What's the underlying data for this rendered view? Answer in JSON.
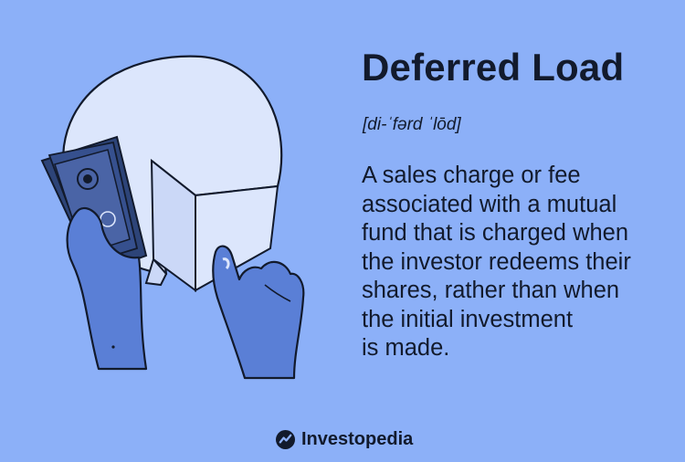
{
  "term": {
    "title": "Deferred Load",
    "pronunciation": "[di-ˈfərd ˈlōd]"
  },
  "definition_lines": [
    "A sales charge or fee",
    "associated with a mutual",
    "fund that is charged when",
    "the investor redeems their",
    "shares, rather than when",
    "the initial investment",
    "is made."
  ],
  "brand": {
    "name": "Investopedia",
    "logo_icon": "investopedia-logo-icon"
  },
  "colors": {
    "background": "#8cb0f8",
    "text": "#121a2c",
    "pie": "#dce6fc",
    "hand": "#5a7fd6",
    "money": "#36508e"
  }
}
